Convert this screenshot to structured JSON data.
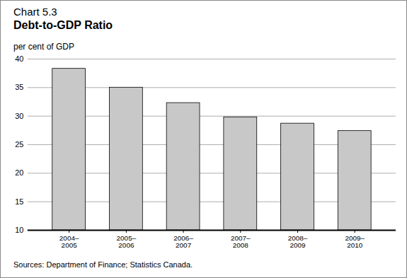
{
  "chart_data": {
    "type": "bar",
    "chart_number": "Chart 5.3",
    "title": "Debt-to-GDP Ratio",
    "y_label": "per cent of GDP",
    "categories": [
      "2004–\n2005",
      "2005–\n2006",
      "2006–\n2007",
      "2007–\n2008",
      "2008–\n2009",
      "2009–\n2010"
    ],
    "values": [
      38.3,
      35.0,
      32.3,
      29.8,
      28.7,
      27.4
    ],
    "color": "#c8c8c8",
    "ylim": [
      10,
      40
    ],
    "yticks": [
      10,
      15,
      20,
      25,
      30,
      35,
      40
    ],
    "grid": true,
    "source": "Sources: Department of Finance; Statistics Canada."
  }
}
